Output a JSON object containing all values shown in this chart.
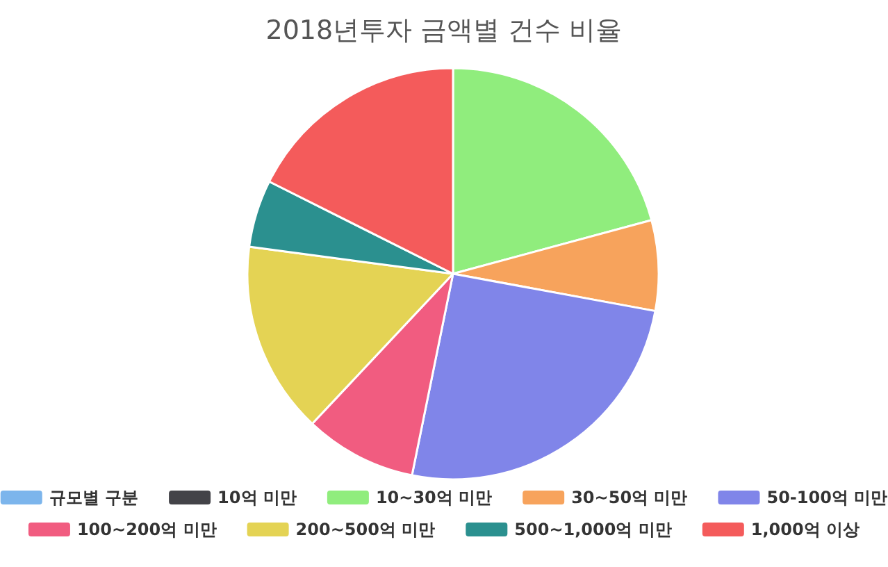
{
  "chart_data": {
    "type": "pie",
    "title": "2018년투자 금액별 건수 비율",
    "categories": [
      "규모별 구분",
      "10억 미만",
      "10~30억 미만",
      "30~50억 미만",
      "50-100억 미만",
      "100~200억 미만",
      "200~500억 미만",
      "500~1,000억 미만",
      "1,000억 이상"
    ],
    "values": [
      0,
      0,
      20.8,
      7.1,
      25.3,
      8.8,
      15.1,
      5.3,
      17.6
    ],
    "colors": [
      "#7cb5ec",
      "#434348",
      "#90ed7d",
      "#f7a35c",
      "#8085e9",
      "#f15c80",
      "#e4d354",
      "#2b908f",
      "#f45b5b"
    ],
    "legend": "bottom"
  }
}
